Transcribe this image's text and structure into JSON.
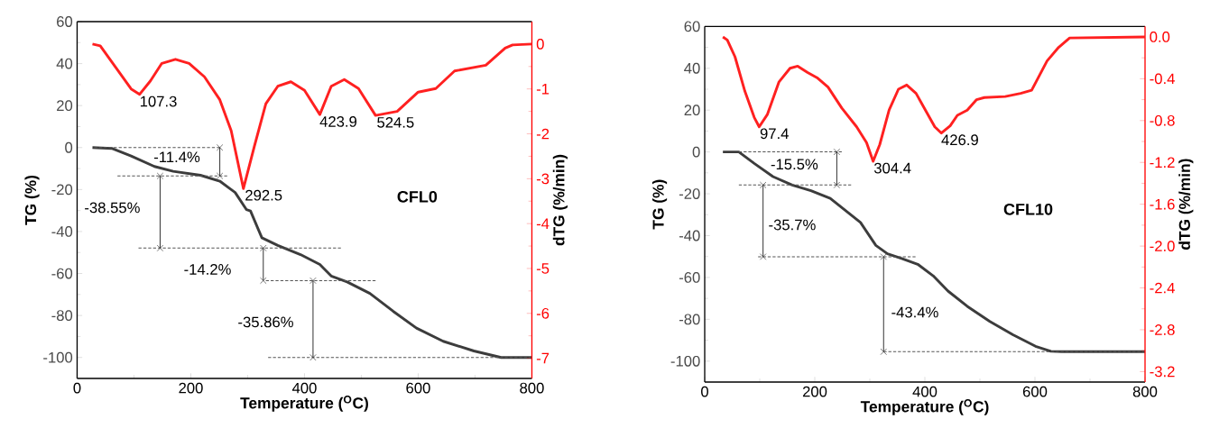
{
  "chart_data": [
    {
      "type": "line",
      "xlabel": "Temperature ($^{O}$C)",
      "ylabel": "TG (%)",
      "y2label": "dTG (%/min)",
      "xlim": [
        0,
        800
      ],
      "xticks": [
        0,
        200,
        400,
        600,
        800
      ],
      "ylim": [
        -110,
        60
      ],
      "yticks": [
        -100,
        -80,
        -60,
        -40,
        -20,
        0,
        20,
        40,
        60
      ],
      "y2lim": [
        -7.45,
        0.5
      ],
      "y2ticks": [
        -7,
        -6,
        -5,
        -4,
        -3,
        -2,
        -1,
        0
      ],
      "annotations": [
        "CFL0",
        {
          "text": "107.3",
          "x": 107.3,
          "y": 25.2
        },
        {
          "text": "292.5",
          "x": 292.5,
          "y": -19.5
        },
        {
          "text": "423.9",
          "x": 423.9,
          "y": 15.6
        },
        {
          "text": "524.5",
          "x": 524.5,
          "y": 15.2
        },
        "-11.4%",
        "-38.55%",
        "-14.2%",
        "-35.86%"
      ],
      "series": [
        {
          "color": "#3c3c3c",
          "x": [
            27,
            61,
            95,
            136,
            169,
            217,
            251,
            278,
            298,
            305,
            325,
            353,
            393,
            427,
            447,
            475,
            515,
            556,
            597,
            644,
            698,
            746,
            800
          ],
          "values": [
            0,
            -0.4,
            -4,
            -9,
            -11.3,
            -13.2,
            -16,
            -21.4,
            -29.6,
            -30.2,
            -43,
            -46.6,
            -51,
            -55.7,
            -61.2,
            -64,
            -69.5,
            -78,
            -86,
            -92.3,
            -96.9,
            -100,
            -100
          ]
        },
        {
          "color": "#ff2020",
          "axis": "y2",
          "x": [
            27,
            40.7,
            68,
            95,
            110,
            129,
            149,
            173,
            197,
            224,
            251,
            271,
            292.5,
            312,
            332,
            353,
            376,
            400,
            427,
            447,
            470,
            495,
            525,
            563,
            600,
            631,
            664,
            719,
            753,
            766,
            800
          ],
          "values": [
            0,
            -0.04,
            -0.52,
            -1.0,
            -1.12,
            -0.82,
            -0.43,
            -0.34,
            -0.43,
            -0.73,
            -1.24,
            -1.93,
            -3.22,
            -2.27,
            -1.33,
            -0.94,
            -0.84,
            -1.03,
            -1.57,
            -0.94,
            -0.79,
            -0.99,
            -1.59,
            -1.5,
            -1.07,
            -0.99,
            -0.6,
            -0.47,
            -0.09,
            -0.02,
            0
          ]
        },
        {
          "color": "#555555",
          "line_style": "dashed",
          "x": [
            30,
            251
          ],
          "values": [
            0,
            0
          ]
        },
        {
          "color": "#555555",
          "line_style": "dashed",
          "x": [
            71,
            264
          ],
          "values": [
            -13.5,
            -13.5
          ]
        },
        {
          "color": "#555555",
          "line_style": "dashed",
          "x": [
            108,
            464
          ],
          "values": [
            -47.9,
            -47.9
          ]
        },
        {
          "color": "#555555",
          "line_style": "dashed",
          "x": [
            332,
            525
          ],
          "values": [
            -63.4,
            -63.4
          ]
        },
        {
          "color": "#555555",
          "line_style": "dashed",
          "x": [
            336,
            800
          ],
          "values": [
            -100,
            -100
          ]
        },
        {
          "color": "#333333",
          "marker": "cross",
          "x": [
            251,
            251
          ],
          "values": [
            0,
            -13.5
          ]
        },
        {
          "color": "#333333",
          "marker": "cross",
          "x": [
            146,
            146
          ],
          "values": [
            -13.5,
            -47.9
          ]
        },
        {
          "color": "#333333",
          "marker": "cross",
          "x": [
            327.5,
            327.5
          ],
          "values": [
            -47.9,
            -63.4
          ]
        },
        {
          "color": "#333333",
          "marker": "cross",
          "x": [
            415,
            415
          ],
          "values": [
            -63.4,
            -100
          ]
        }
      ]
    },
    {
      "type": "line",
      "xlabel": "Temperature ($^{O}$C)",
      "ylabel": "TG (%)",
      "y2label": "dTG (%/min)",
      "xlim": [
        0,
        800
      ],
      "xticks": [
        0,
        200,
        400,
        600,
        800
      ],
      "ylim": [
        -110,
        60
      ],
      "yticks": [
        -100,
        -80,
        -60,
        -40,
        -20,
        0,
        20,
        40,
        60
      ],
      "y2lim": [
        -3.3,
        0.1
      ],
      "y2ticks": [
        -3.2,
        -2.8,
        -2.4,
        {
          "value": -2,
          "label": "-2.0"
        },
        -1.6,
        -1.2,
        -0.8,
        -0.4,
        {
          "value": 0,
          "label": "0.0"
        }
      ],
      "annotations": [
        "CFL10",
        {
          "text": "97.4",
          "x": 97.4,
          "y": 12.0
        },
        {
          "text": "304.4",
          "x": 304.4,
          "y": -4.5
        },
        {
          "text": "426.9",
          "x": 426.9,
          "y": 9.0
        },
        "-15.5%",
        "-35.7%",
        "-43.4%"
      ],
      "series": [
        {
          "color": "#3c3c3c",
          "x": [
            33,
            62,
            90,
            124,
            159,
            193,
            228,
            283,
            311,
            332,
            359,
            387,
            415,
            442,
            477,
            518,
            560,
            601,
            629,
            649,
            800
          ],
          "values": [
            0,
            0,
            -5.5,
            -11.8,
            -15.8,
            -18.5,
            -22.2,
            -33.7,
            -44.7,
            -48.7,
            -51,
            -53.7,
            -59.2,
            -66.5,
            -73.8,
            -81,
            -87.4,
            -92.9,
            -95.3,
            -95.5,
            -95.5
          ]
        },
        {
          "color": "#ff2020",
          "axis": "y2",
          "x": [
            33,
            41,
            55,
            73,
            90,
            99,
            114,
            135,
            155,
            169,
            187,
            204,
            224,
            249,
            276,
            294,
            306,
            318,
            335,
            352,
            367,
            384,
            401,
            418,
            430,
            446,
            459,
            477,
            494,
            508,
            546,
            574,
            594,
            608,
            622,
            643,
            663,
            800
          ],
          "values": [
            0,
            -0.03,
            -0.19,
            -0.52,
            -0.77,
            -0.86,
            -0.74,
            -0.43,
            -0.3,
            -0.28,
            -0.34,
            -0.39,
            -0.48,
            -0.68,
            -0.86,
            -1.01,
            -1.19,
            -1.03,
            -0.7,
            -0.5,
            -0.46,
            -0.54,
            -0.7,
            -0.86,
            -0.92,
            -0.85,
            -0.75,
            -0.7,
            -0.6,
            -0.58,
            -0.57,
            -0.54,
            -0.51,
            -0.37,
            -0.23,
            -0.1,
            -0.01,
            0
          ]
        },
        {
          "color": "#555555",
          "line_style": "dashed",
          "x": [
            62,
            249
          ],
          "values": [
            0,
            0
          ]
        },
        {
          "color": "#555555",
          "line_style": "dashed",
          "x": [
            62,
            266
          ],
          "values": [
            -15.8,
            -15.8
          ]
        },
        {
          "color": "#555555",
          "line_style": "dashed",
          "x": [
            97,
            383
          ],
          "values": [
            -50.1,
            -50.1
          ]
        },
        {
          "color": "#555555",
          "line_style": "dashed",
          "x": [
            325,
            800
          ],
          "values": [
            -95.5,
            -95.5
          ]
        },
        {
          "color": "#333333",
          "marker": "cross",
          "x": [
            240,
            240
          ],
          "values": [
            0,
            -15.8
          ]
        },
        {
          "color": "#333333",
          "marker": "cross",
          "x": [
            106,
            106
          ],
          "values": [
            -15.8,
            -50.1
          ]
        },
        {
          "color": "#333333",
          "marker": "cross",
          "x": [
            325,
            325
          ],
          "values": [
            -50.1,
            -95.5
          ]
        }
      ]
    }
  ]
}
